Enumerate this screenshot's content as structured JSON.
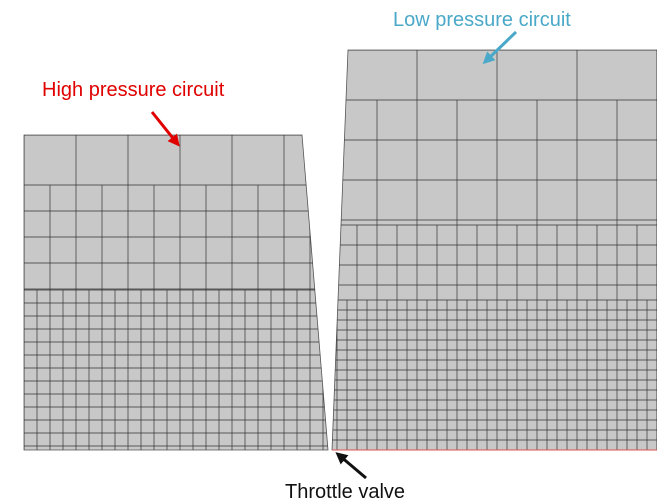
{
  "annotations": {
    "high": "High pressure circuit",
    "low": "Low pressure circuit",
    "valve": "Throttle valve"
  }
}
